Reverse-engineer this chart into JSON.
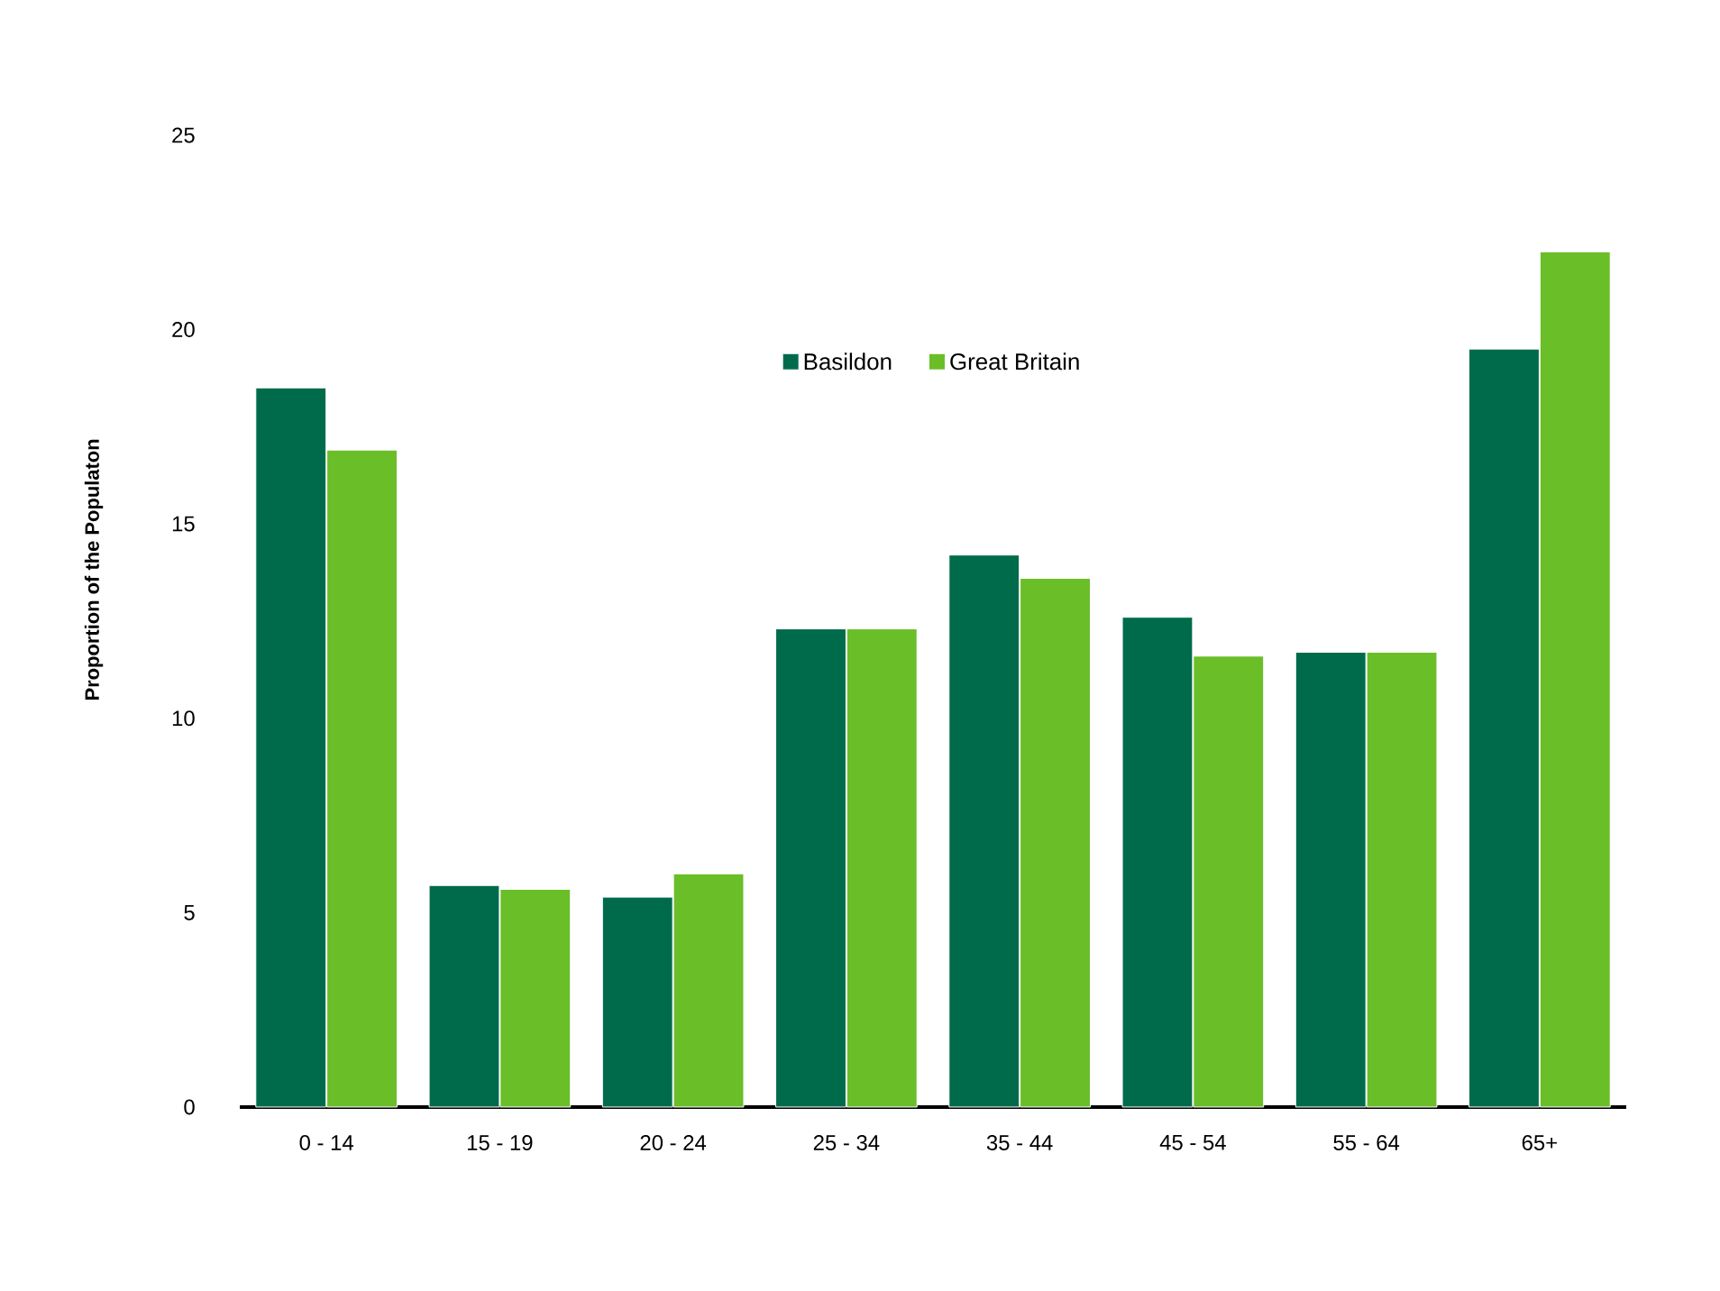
{
  "chart_data": {
    "type": "bar",
    "ylabel": "Proportion of the Populaton",
    "categories": [
      "0 - 14",
      "15 - 19",
      "20 - 24",
      "25 - 34",
      "35 - 44",
      "45 - 54",
      "55 - 64",
      "65+"
    ],
    "series": [
      {
        "name": "Basildon",
        "color": "#006b4b",
        "values": [
          18.5,
          5.7,
          5.4,
          12.3,
          14.2,
          12.6,
          11.7,
          19.5
        ]
      },
      {
        "name": "Great Britain",
        "color": "#6abe28",
        "values": [
          16.9,
          5.6,
          6.0,
          12.3,
          13.6,
          11.6,
          11.7,
          22.0
        ]
      }
    ],
    "ylim": [
      0,
      25
    ],
    "yticks": [
      0,
      5,
      10,
      15,
      20,
      25
    ],
    "legend": "top"
  }
}
